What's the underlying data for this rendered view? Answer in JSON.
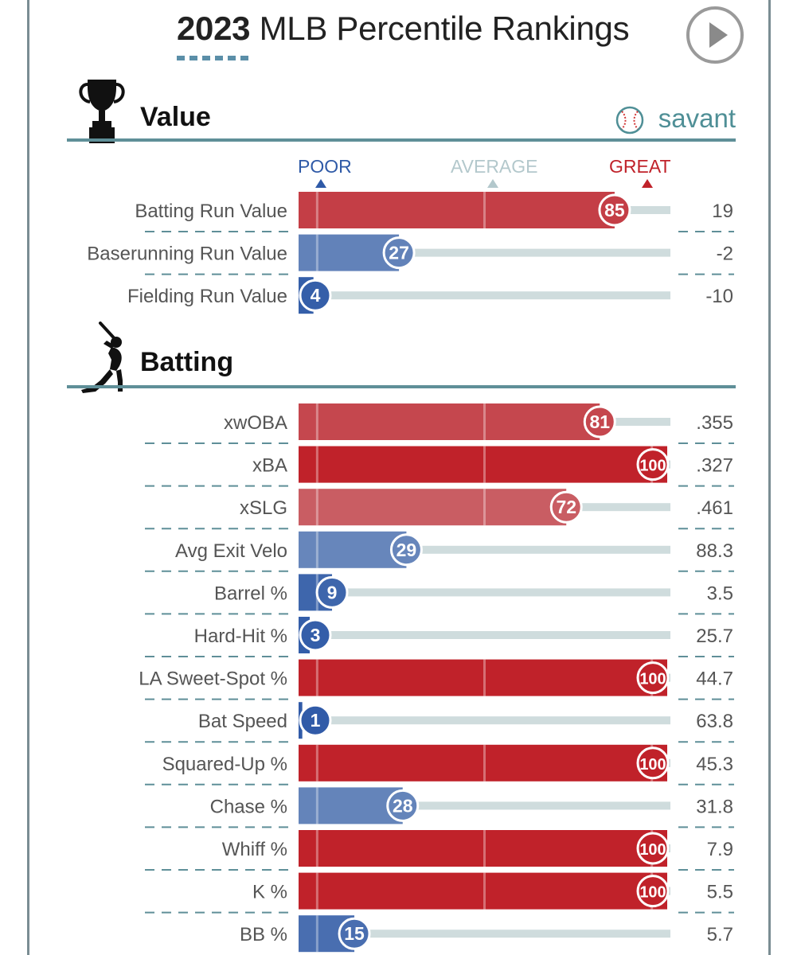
{
  "header": {
    "title_year": "2023",
    "title_rest": "MLB Percentile Rankings"
  },
  "icons": {
    "play": "play-icon",
    "trophy": "trophy-icon",
    "batter": "batter-silhouette-icon",
    "logo": "baseball-icon"
  },
  "logo": {
    "text": "savant"
  },
  "legend": {
    "poor": "POOR",
    "average": "AVERAGE",
    "great": "GREAT",
    "poor_color": "#2f5aa7",
    "average_color": "#b3c8cc",
    "great_color": "#c0222a"
  },
  "chart_data": {
    "type": "bar",
    "title": "2023 MLB Percentile Rankings",
    "xlim": [
      0,
      100
    ],
    "sections": [
      {
        "name": "Value",
        "metrics": [
          {
            "label": "Batting Run Value",
            "percentile": 85,
            "value": "19"
          },
          {
            "label": "Baserunning Run Value",
            "percentile": 27,
            "value": "-2"
          },
          {
            "label": "Fielding Run Value",
            "percentile": 4,
            "value": "-10"
          }
        ]
      },
      {
        "name": "Batting",
        "metrics": [
          {
            "label": "xwOBA",
            "percentile": 81,
            "value": ".355"
          },
          {
            "label": "xBA",
            "percentile": 100,
            "value": ".327"
          },
          {
            "label": "xSLG",
            "percentile": 72,
            "value": ".461"
          },
          {
            "label": "Avg Exit Velo",
            "percentile": 29,
            "value": "88.3"
          },
          {
            "label": "Barrel %",
            "percentile": 9,
            "value": "3.5"
          },
          {
            "label": "Hard-Hit %",
            "percentile": 3,
            "value": "25.7"
          },
          {
            "label": "LA Sweet-Spot %",
            "percentile": 100,
            "value": "44.7"
          },
          {
            "label": "Bat Speed",
            "percentile": 1,
            "value": "63.8"
          },
          {
            "label": "Squared-Up %",
            "percentile": 100,
            "value": "45.3"
          },
          {
            "label": "Chase %",
            "percentile": 28,
            "value": "31.8"
          },
          {
            "label": "Whiff %",
            "percentile": 100,
            "value": "7.9"
          },
          {
            "label": "K %",
            "percentile": 100,
            "value": "5.5"
          },
          {
            "label": "BB %",
            "percentile": 15,
            "value": "5.7"
          }
        ]
      }
    ]
  }
}
